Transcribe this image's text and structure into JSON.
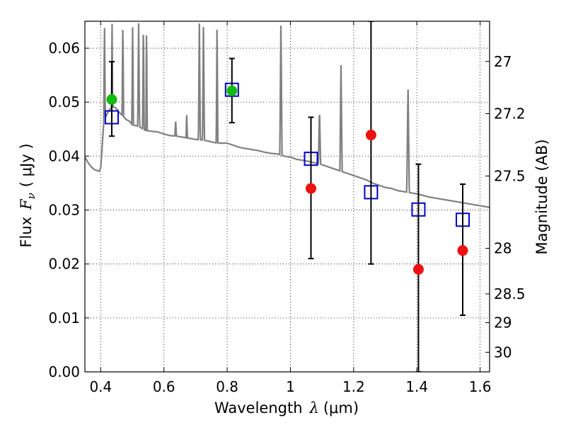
{
  "chart_data": {
    "type": "scatter",
    "title": "",
    "xlabel": "Wavelength",
    "xlabel_symbol": "λ",
    "xlabel_unit": "(μm)",
    "ylabel": "Flux",
    "ylabel_symbol": "F",
    "ylabel_subscript": "ν",
    "ylabel_unit": "( μJy )",
    "y2label": "Magnitude (AB)",
    "xlim": [
      0.35,
      1.63
    ],
    "ylim": [
      0.0,
      0.065
    ],
    "grid": true,
    "grid_style": "dotted",
    "x_ticks": [
      0.4,
      0.6,
      0.8,
      1.0,
      1.2,
      1.4,
      1.6
    ],
    "x_tick_labels": [
      "0.4",
      "0.6",
      "0.8",
      "1",
      "1.2",
      "1.4",
      "1.6"
    ],
    "y_ticks": [
      0.0,
      0.01,
      0.02,
      0.03,
      0.04,
      0.05,
      0.06
    ],
    "y_tick_labels": [
      "0.00",
      "0.01",
      "0.02",
      "0.03",
      "0.04",
      "0.05",
      "0.06"
    ],
    "y2_ticks": [
      27,
      27.2,
      27.5,
      28,
      28.5,
      29,
      30
    ],
    "y2_tick_labels": [
      "27",
      "27.2",
      "27.5",
      "28",
      "28.5",
      "29",
      "30"
    ],
    "series": [
      {
        "kind": "model-spectrum",
        "color": "#808080",
        "x": [
          0.35,
          0.36,
          0.37,
          0.38,
          0.39,
          0.395,
          0.4,
          0.41,
          0.42,
          0.43,
          0.44,
          0.45,
          0.46,
          0.47,
          0.48,
          0.49,
          0.5,
          0.52,
          0.54,
          0.56,
          0.58,
          0.6,
          0.62,
          0.64,
          0.66,
          0.68,
          0.7,
          0.72,
          0.74,
          0.76,
          0.78,
          0.8,
          0.82,
          0.84,
          0.86,
          0.88,
          0.9,
          0.92,
          0.94,
          0.96,
          0.98,
          1.0,
          1.02,
          1.04,
          1.06,
          1.08,
          1.1,
          1.12,
          1.14,
          1.16,
          1.18,
          1.2,
          1.22,
          1.24,
          1.26,
          1.28,
          1.3,
          1.32,
          1.34,
          1.36,
          1.38,
          1.4,
          1.42,
          1.44,
          1.46,
          1.48,
          1.5,
          1.52,
          1.54,
          1.56,
          1.58,
          1.6,
          1.62,
          1.63
        ],
        "y": [
          0.0398,
          0.0388,
          0.038,
          0.0375,
          0.0373,
          0.0372,
          0.0378,
          0.0465,
          0.0478,
          0.0488,
          0.0492,
          0.0488,
          0.048,
          0.0475,
          0.0468,
          0.0465,
          0.0458,
          0.0455,
          0.0448,
          0.0446,
          0.0445,
          0.0441,
          0.0438,
          0.0437,
          0.0435,
          0.0433,
          0.0431,
          0.043,
          0.0428,
          0.0425,
          0.0424,
          0.0424,
          0.042,
          0.0416,
          0.0414,
          0.0412,
          0.041,
          0.0407,
          0.0405,
          0.0404,
          0.04,
          0.0398,
          0.0394,
          0.0392,
          0.039,
          0.0387,
          0.0384,
          0.038,
          0.0376,
          0.0372,
          0.0368,
          0.0364,
          0.036,
          0.0356,
          0.035,
          0.0346,
          0.0342,
          0.034,
          0.0336,
          0.0334,
          0.0332,
          0.033,
          0.0327,
          0.0324,
          0.0322,
          0.032,
          0.0318,
          0.0316,
          0.0314,
          0.0312,
          0.031,
          0.0308,
          0.0306,
          0.0305
        ],
        "emission_lines": [
          {
            "x": 0.394,
            "peak": 0.0372,
            "width": 0.004
          },
          {
            "x": 0.412,
            "peak": 0.065,
            "width": 0.005
          },
          {
            "x": 0.436,
            "peak": 0.065,
            "width": 0.004
          },
          {
            "x": 0.47,
            "peak": 0.065,
            "width": 0.005
          },
          {
            "x": 0.501,
            "peak": 0.065,
            "width": 0.005
          },
          {
            "x": 0.52,
            "peak": 0.065,
            "width": 0.006
          },
          {
            "x": 0.535,
            "peak": 0.065,
            "width": 0.005
          },
          {
            "x": 0.545,
            "peak": 0.065,
            "width": 0.004
          },
          {
            "x": 0.637,
            "peak": 0.0465,
            "width": 0.005
          },
          {
            "x": 0.672,
            "peak": 0.048,
            "width": 0.004
          },
          {
            "x": 0.712,
            "peak": 0.065,
            "width": 0.006
          },
          {
            "x": 0.725,
            "peak": 0.065,
            "width": 0.006
          },
          {
            "x": 0.768,
            "peak": 0.065,
            "width": 0.005
          },
          {
            "x": 0.97,
            "peak": 0.065,
            "width": 0.007
          },
          {
            "x": 1.092,
            "peak": 0.0488,
            "width": 0.007
          },
          {
            "x": 1.16,
            "peak": 0.0572,
            "width": 0.007
          },
          {
            "x": 1.372,
            "peak": 0.0532,
            "width": 0.008
          }
        ]
      },
      {
        "kind": "model-photometry",
        "marker": "open-square",
        "color": "#0000cc",
        "x": [
          0.435,
          0.815,
          1.065,
          1.255,
          1.405,
          1.545
        ],
        "y": [
          0.0472,
          0.0523,
          0.0395,
          0.0333,
          0.0301,
          0.0282
        ]
      },
      {
        "kind": "observed-green",
        "marker": "filled-circle",
        "color": "#11bb11",
        "x": [
          0.435,
          0.815
        ],
        "y": [
          0.0505,
          0.0521
        ],
        "yerr_low": [
          0.0437,
          0.0462
        ],
        "yerr_high": [
          0.0575,
          0.0581
        ]
      },
      {
        "kind": "observed-red",
        "marker": "filled-circle",
        "color": "#ee1111",
        "x": [
          1.065,
          1.255,
          1.405,
          1.545
        ],
        "y": [
          0.034,
          0.0439,
          0.019,
          0.0225
        ],
        "yerr_low": [
          0.021,
          0.02,
          0.0,
          0.0105
        ],
        "yerr_high": [
          0.0472,
          0.065,
          0.0385,
          0.0348
        ]
      }
    ]
  }
}
